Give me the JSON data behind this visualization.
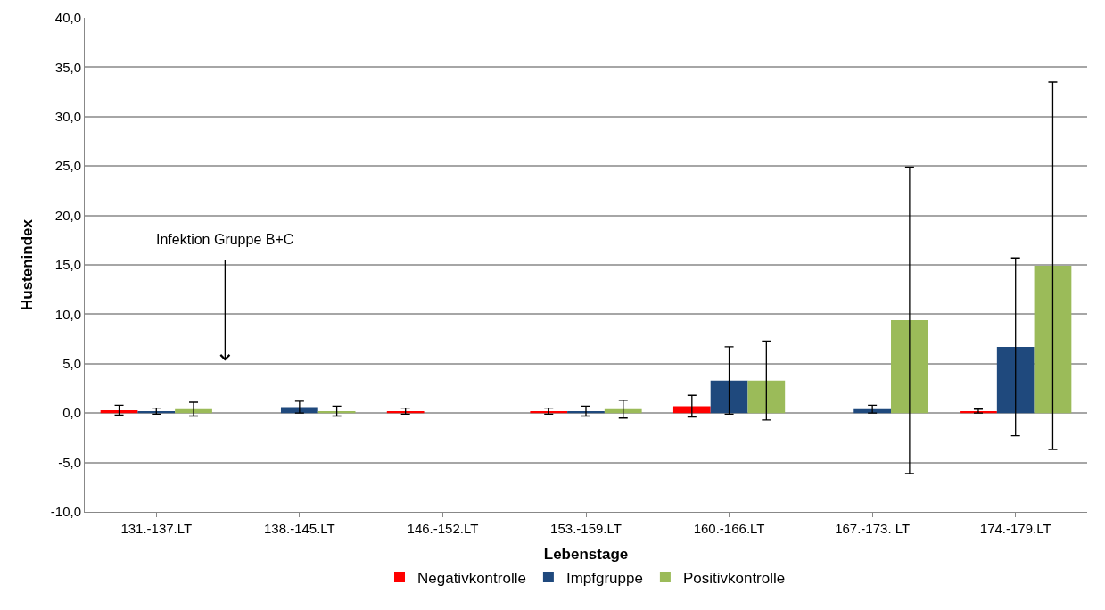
{
  "chart_data": {
    "type": "bar",
    "xlabel": "Lebenstage",
    "ylabel": "Hustenindex",
    "categories": [
      "131.-137.LT",
      "138.-145.LT",
      "146.-152.LT",
      "153.-159.LT",
      "160.-166.LT",
      "167.-173. LT",
      "174.-179.LT"
    ],
    "series": [
      {
        "name": "Negativkontrolle",
        "color": "#ff0000",
        "values": [
          0.3,
          null,
          0.2,
          0.2,
          0.7,
          null,
          0.2
        ],
        "errors": [
          0.5,
          null,
          0.3,
          0.3,
          1.1,
          null,
          0.2
        ]
      },
      {
        "name": "Impfgruppe",
        "color": "#1f497d",
        "values": [
          0.2,
          0.6,
          null,
          0.2,
          3.3,
          0.4,
          6.7
        ],
        "errors": [
          0.3,
          0.6,
          null,
          0.5,
          3.4,
          0.4,
          9.0
        ]
      },
      {
        "name": "Positivkontrolle",
        "color": "#9bbb59",
        "values": [
          0.4,
          0.2,
          null,
          0.4,
          3.3,
          9.4,
          14.9
        ],
        "errors": [
          0.7,
          0.5,
          null,
          0.9,
          4.0,
          15.5,
          18.6
        ]
      }
    ],
    "ylim": [
      -10,
      40
    ],
    "yticks": [
      {
        "value": -10,
        "label": "-10,0"
      },
      {
        "value": -5,
        "label": "-5,0"
      },
      {
        "value": 0,
        "label": "0,0"
      },
      {
        "value": 5,
        "label": "5,0"
      },
      {
        "value": 10,
        "label": "10,0"
      },
      {
        "value": 15,
        "label": "15,0"
      },
      {
        "value": 20,
        "label": "20,0"
      },
      {
        "value": 25,
        "label": "25,0"
      },
      {
        "value": 30,
        "label": "30,0"
      },
      {
        "value": 35,
        "label": "35,0"
      },
      {
        "value": 40,
        "label": "40,0"
      }
    ],
    "annotations": [
      "Infektion Gruppe B+C"
    ],
    "grid": "y",
    "legend": "bottom"
  }
}
